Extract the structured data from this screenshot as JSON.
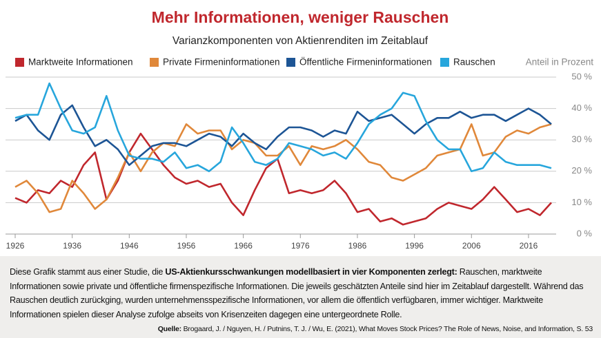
{
  "chart_data": {
    "type": "line",
    "title": "Mehr Informationen, weniger Rauschen",
    "subtitle": "Varianzkomponenten von Aktienrenditen im Zeitablauf",
    "y_label": "Anteil in Prozent",
    "x": [
      1926,
      1928,
      1930,
      1932,
      1934,
      1936,
      1938,
      1940,
      1942,
      1944,
      1946,
      1948,
      1950,
      1952,
      1954,
      1956,
      1958,
      1960,
      1962,
      1964,
      1966,
      1968,
      1970,
      1972,
      1974,
      1976,
      1978,
      1980,
      1982,
      1984,
      1986,
      1988,
      1990,
      1992,
      1994,
      1996,
      1998,
      2000,
      2002,
      2004,
      2006,
      2008,
      2010,
      2012,
      2014,
      2016,
      2018,
      2020
    ],
    "xlim": [
      1926,
      2020
    ],
    "xticks": [
      1926,
      1936,
      1946,
      1956,
      1966,
      1976,
      1986,
      1996,
      2006,
      2016
    ],
    "ylim": [
      0,
      50
    ],
    "yticks": [
      {
        "value": 0,
        "label": "0 %"
      },
      {
        "value": 10,
        "label": "10 %"
      },
      {
        "value": 20,
        "label": "20 %"
      },
      {
        "value": 30,
        "label": "30 %"
      },
      {
        "value": 40,
        "label": "40 %"
      },
      {
        "value": 50,
        "label": "50 %"
      }
    ],
    "grid": true,
    "series": [
      {
        "name": "Marktweite Informationen",
        "color": "#c0272d",
        "values": [
          11.5,
          10,
          14,
          13,
          17,
          15,
          22,
          26,
          11,
          17,
          26,
          32,
          27,
          22,
          18,
          16,
          17,
          15,
          16,
          10,
          6,
          14,
          21,
          24,
          13,
          14,
          13,
          14,
          17,
          13,
          7,
          8,
          4,
          5,
          3,
          4,
          5,
          8,
          10,
          9,
          8,
          11,
          15,
          11,
          7,
          8,
          6,
          10
        ]
      },
      {
        "name": "Private Firmeninformationen",
        "color": "#e0883a",
        "values": [
          15,
          17,
          13,
          7,
          8,
          17,
          13,
          8,
          11,
          18,
          26,
          20,
          26,
          29,
          28,
          35,
          32,
          33,
          33,
          27,
          30,
          29,
          25,
          25,
          28,
          22,
          28,
          27,
          28,
          30,
          27,
          23,
          22,
          18,
          17,
          19,
          21,
          25,
          26,
          27,
          35,
          25,
          26,
          31,
          33,
          32,
          34,
          35
        ]
      },
      {
        "name": "Öffentliche Firmeninformationen",
        "color": "#1d5595",
        "values": [
          36,
          38,
          33,
          30,
          38,
          41,
          34,
          28,
          30,
          27,
          22,
          25,
          28,
          29,
          29,
          28,
          30,
          32,
          31,
          28,
          32,
          29,
          27,
          31,
          34,
          34,
          33,
          31,
          33,
          32,
          39,
          36,
          37,
          38,
          35,
          32,
          35,
          37,
          37,
          39,
          37,
          38,
          38,
          36,
          38,
          40,
          38,
          35
        ]
      },
      {
        "name": "Rauschen",
        "color": "#27a6dc",
        "values": [
          37,
          38,
          38,
          48,
          40,
          33,
          32,
          34,
          44,
          33,
          25,
          24,
          24,
          23,
          26,
          21,
          22,
          20,
          23,
          34,
          29,
          23,
          22,
          24,
          29,
          28,
          27,
          25,
          26,
          24,
          29,
          35,
          38,
          40,
          45,
          44,
          36,
          30,
          27,
          27,
          20,
          21,
          26,
          23,
          22,
          22,
          22,
          21
        ]
      }
    ]
  },
  "caption": {
    "intro": "Diese Grafik stammt aus einer Studie, die ",
    "highlight": "US-Aktienkursschwankungen modellbasiert in vier Komponenten zerlegt:",
    "rest": " Rauschen, marktweite Informationen sowie private und öffentliche firmenspezifische Informationen. Die jeweils geschätzten Anteile sind hier im Zeitablauf dargestellt. Während das Rauschen deutlich zurückging, wurden unternehmensspezifische Informationen, vor allem die öffentlich verfügbaren, immer wichtiger. Marktweite Informationen spielen dieser Analyse zufolge abseits von Krisenzeiten dagegen eine untergeordnete Rolle."
  },
  "source": {
    "label": "Quelle:",
    "text": " Brogaard, J. / Nguyen, H. / Putnins, T. J. / Wu, E. (2021), What Moves Stock Prices? The Role of News, Noise, and Information, S. 53"
  }
}
